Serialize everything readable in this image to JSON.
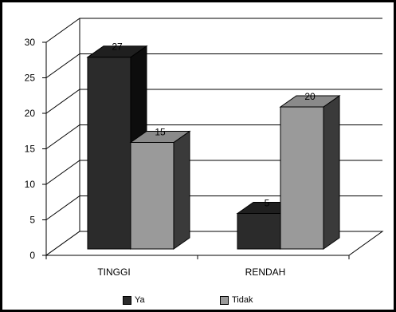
{
  "chart_data": {
    "type": "bar",
    "categories": [
      "TINGGI",
      "RENDAH"
    ],
    "series": [
      {
        "name": "Ya",
        "values": [
          27,
          5
        ],
        "color": "#2b2b2b",
        "side_color": "#0d0d0d",
        "top_color": "#1f1f1f"
      },
      {
        "name": "Tidak",
        "values": [
          15,
          20
        ],
        "color": "#9a9a9a",
        "side_color": "#3a3a3a",
        "top_color": "#8a8a8a"
      }
    ],
    "yticks": [
      "0",
      "5",
      "10",
      "15",
      "20",
      "25",
      "30"
    ],
    "ylim": [
      0,
      30
    ],
    "grid": true,
    "three_d": true,
    "legend_position": "bottom"
  }
}
